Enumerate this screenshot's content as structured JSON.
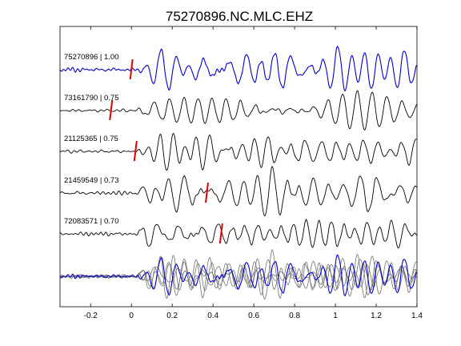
{
  "chart_data": {
    "type": "line",
    "title": "75270896.NC.MLC.EHZ",
    "xlabel": "",
    "ylabel": "",
    "xlim": [
      -0.35,
      1.4
    ],
    "x_ticks": [
      -0.2,
      0,
      0.2,
      0.4,
      0.6,
      0.8,
      1,
      1.2,
      1.4
    ],
    "x_tick_labels": [
      "-0.2",
      "0",
      "0.2",
      "0.4",
      "0.6",
      "0.8",
      "1",
      "1.2",
      "1.4"
    ],
    "grid": false,
    "colors": {
      "reference": "#0000cc",
      "trace": "#000000",
      "stack_other": "#707070",
      "pick": "#dd0000",
      "axes": "#000000"
    },
    "traces": [
      {
        "label": "75270896 | 1.00",
        "event_id": "75270896",
        "cc": 1.0,
        "pick_time": 0.0,
        "color": "#0000cc",
        "lag": 0.0,
        "seed": 1
      },
      {
        "label": "73161790 | 0.75",
        "event_id": "73161790",
        "cc": 0.75,
        "pick_time": -0.1,
        "color": "#000000",
        "lag": 0.1,
        "seed": 2
      },
      {
        "label": "21125365 | 0.75",
        "event_id": "21125365",
        "cc": 0.75,
        "pick_time": 0.02,
        "color": "#000000",
        "lag": -0.02,
        "seed": 3
      },
      {
        "label": "21459549 | 0.73",
        "event_id": "21459549",
        "cc": 0.73,
        "pick_time": 0.37,
        "color": "#000000",
        "lag": -0.37,
        "seed": 4
      },
      {
        "label": "72083571 | 0.70",
        "event_id": "72083571",
        "cc": 0.7,
        "pick_time": 0.44,
        "color": "#000000",
        "lag": -0.44,
        "seed": 5
      }
    ]
  }
}
